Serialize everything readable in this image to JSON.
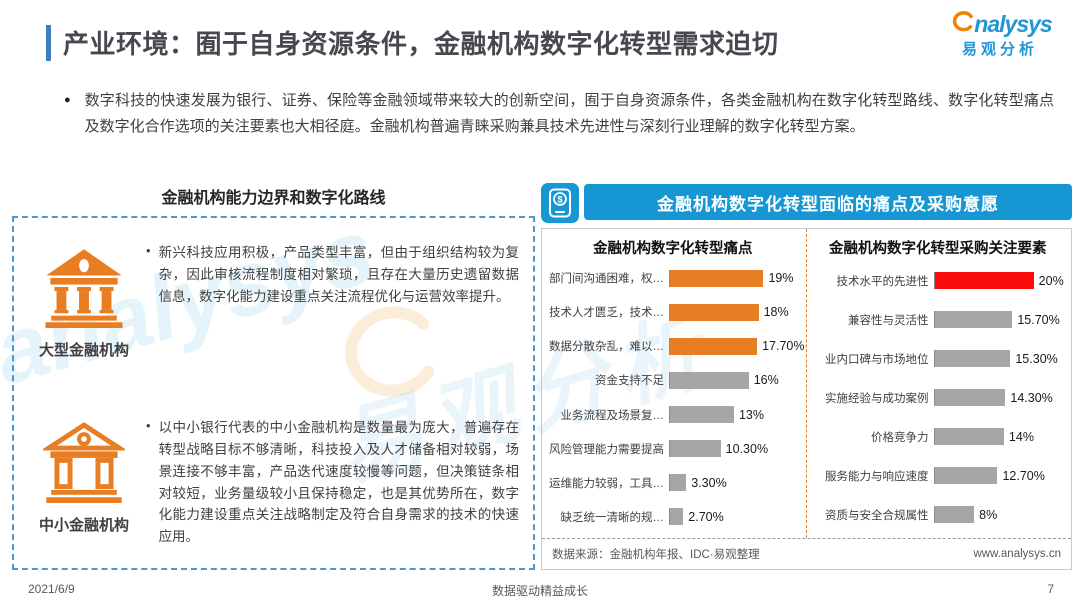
{
  "header": {
    "title": "产业环境：囿于自身资源条件，金融机构数字化转型需求迫切",
    "logo_brand": "nalysys",
    "logo_cn": "易观分析"
  },
  "intro": "数字科技的快速发展为银行、证券、保险等金融领域带来较大的创新空间，囿于自身资源条件，各类金融机构在数字化转型路线、数字化转型痛点及数字化合作选项的关注要素也大相径庭。金融机构普遍青睐采购兼具技术先进性与深刻行业理解的数字化转型方案。",
  "left_panel": {
    "title": "金融机构能力边界和数字化路线",
    "items": [
      {
        "label": "大型金融机构",
        "icon": "bank-large-icon",
        "text": "新兴科技应用积极，产品类型丰富，但由于组织结构较为复杂，因此审核流程制度相对繁琐，且存在大量历史遗留数据信息，数字化能力建设重点关注流程优化与运营效率提升。"
      },
      {
        "label": "中小金融机构",
        "icon": "bank-small-icon",
        "text": "以中小银行代表的中小金融机构是数量最为庞大，普遍存在转型战略目标不够清晰，科技投入及人才储备相对较弱，场景连接不够丰富，产品迭代速度较慢等问题，但决策链条相对较短，业务量级较小且保持稳定，也是其优势所在，数字化能力建设重点关注战略制定及符合自身需求的技术的快速应用。"
      }
    ]
  },
  "right_panel": {
    "header": "金融机构数字化转型面临的痛点及采购意愿",
    "source": "数据来源：金融机构年报、IDC·易观整理",
    "website": "www.analysys.cn"
  },
  "chart_data": [
    {
      "type": "bar",
      "orientation": "horizontal",
      "title": "金融机构数字化转型痛点",
      "xmax": 20,
      "legend": false,
      "bars": [
        {
          "category": "部门间沟通困难，权…",
          "value": 19,
          "label": "19%",
          "color": "orange"
        },
        {
          "category": "技术人才匮乏，技术…",
          "value": 18,
          "label": "18%",
          "color": "orange"
        },
        {
          "category": "数据分散杂乱，难以…",
          "value": 17.7,
          "label": "17.70%",
          "color": "orange"
        },
        {
          "category": "资金支持不足",
          "value": 16,
          "label": "16%",
          "color": "gray"
        },
        {
          "category": "业务流程及场景复…",
          "value": 13,
          "label": "13%",
          "color": "gray"
        },
        {
          "category": "风险管理能力需要提高",
          "value": 10.3,
          "label": "10.30%",
          "color": "gray"
        },
        {
          "category": "运维能力较弱，工具…",
          "value": 3.3,
          "label": "3.30%",
          "color": "gray"
        },
        {
          "category": "缺乏统一清晰的规…",
          "value": 2.7,
          "label": "2.70%",
          "color": "gray"
        }
      ]
    },
    {
      "type": "bar",
      "orientation": "horizontal",
      "title": "金融机构数字化转型采购关注要素",
      "xmax": 20,
      "legend": false,
      "bars": [
        {
          "category": "技术水平的先进性",
          "value": 20,
          "label": "20%",
          "color": "red"
        },
        {
          "category": "兼容性与灵活性",
          "value": 15.7,
          "label": "15.70%",
          "color": "gray"
        },
        {
          "category": "业内口碑与市场地位",
          "value": 15.3,
          "label": "15.30%",
          "color": "gray"
        },
        {
          "category": "实施经验与成功案例",
          "value": 14.3,
          "label": "14.30%",
          "color": "gray"
        },
        {
          "category": "价格竞争力",
          "value": 14,
          "label": "14%",
          "color": "gray"
        },
        {
          "category": "服务能力与响应速度",
          "value": 12.7,
          "label": "12.70%",
          "color": "gray"
        },
        {
          "category": "资质与安全合规属性",
          "value": 8,
          "label": "8%",
          "color": "gray"
        }
      ]
    }
  ],
  "colors": {
    "orange": "#E87E23",
    "gray": "#A6A6A6",
    "red": "#F90D0B",
    "header_blue": "#1697D4",
    "accent_blue": "#3F7FBF"
  },
  "watermark": {
    "text1": "analysys",
    "text2": "易观分析"
  },
  "footer": {
    "date": "2021/6/9",
    "center": "数据驱动精益成长",
    "page": "7"
  }
}
